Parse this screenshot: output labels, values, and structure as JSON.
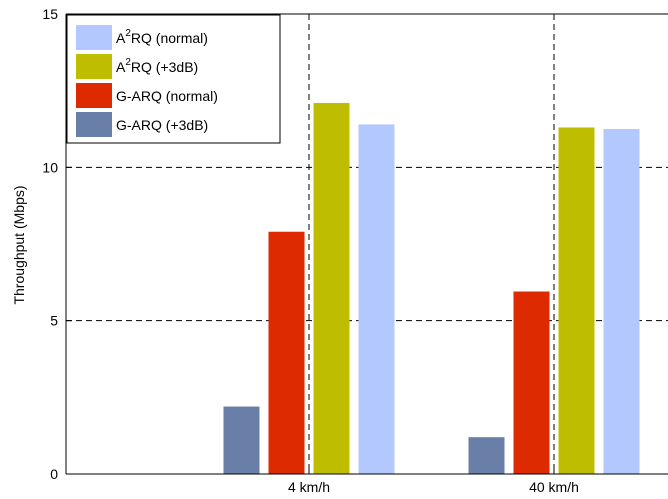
{
  "chart_data": {
    "type": "bar",
    "categories": [
      "4 km/h",
      "40 km/h"
    ],
    "series": [
      {
        "name": "G-ARQ (+3dB)",
        "color": "#6a7fa8",
        "values": [
          2.2,
          1.2
        ]
      },
      {
        "name": "G-ARQ (normal)",
        "color": "#dd2a00",
        "values": [
          7.9,
          5.95
        ]
      },
      {
        "name": "A2RQ (+3dB)",
        "color": "#bfbd00",
        "values": [
          12.1,
          11.3
        ]
      },
      {
        "name": "A2RQ (normal)",
        "color": "#b3c8ff",
        "values": [
          11.4,
          11.25
        ]
      }
    ],
    "ylabel": "Throughput (Mbps)",
    "ylim": [
      0,
      15
    ],
    "yticks": [
      "0",
      "5",
      "10",
      "15"
    ],
    "grid": true,
    "legend_position": "top-left",
    "legend": [
      {
        "base": "A",
        "sup": "2",
        "rest": "RQ (normal)",
        "color": "#b3c8ff"
      },
      {
        "base": "A",
        "sup": "2",
        "rest": "RQ (+3dB)",
        "color": "#bfbd00"
      },
      {
        "base": "G-ARQ (normal)",
        "sup": "",
        "rest": "",
        "color": "#dd2a00"
      },
      {
        "base": "G-ARQ (+3dB)",
        "sup": "",
        "rest": "",
        "color": "#6a7fa8"
      }
    ]
  }
}
